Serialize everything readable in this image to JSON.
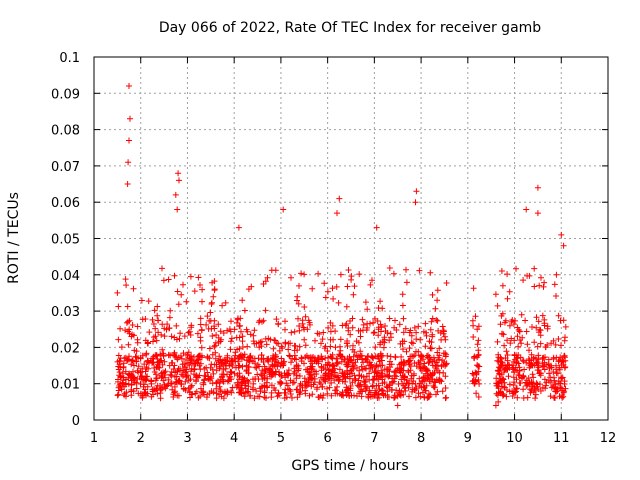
{
  "chart_data": {
    "type": "scatter",
    "title": "Day 066 of 2022, Rate Of TEC Index for receiver gamb",
    "xlabel": "GPS time / hours",
    "ylabel": "ROTI / TECUs",
    "xlim": [
      1,
      12
    ],
    "ylim": [
      0,
      0.1
    ],
    "xticks": [
      "1",
      "2",
      "3",
      "4",
      "5",
      "6",
      "7",
      "8",
      "9",
      "10",
      "11",
      "12"
    ],
    "yticks": [
      "0",
      "0.01",
      "0.02",
      "0.03",
      "0.04",
      "0.05",
      "0.06",
      "0.07",
      "0.08",
      "0.09",
      "0.1"
    ],
    "grid": true,
    "marker": "+",
    "series": [
      {
        "name": "ROTI",
        "color": "#ff0000",
        "coverage_hours": [
          [
            1.5,
            8.55
          ],
          [
            9.1,
            9.25
          ],
          [
            9.6,
            11.1
          ]
        ],
        "notable_points": [
          {
            "x": 1.75,
            "y": 0.092
          },
          {
            "x": 1.77,
            "y": 0.083
          },
          {
            "x": 1.75,
            "y": 0.077
          },
          {
            "x": 1.73,
            "y": 0.071
          },
          {
            "x": 1.72,
            "y": 0.065
          },
          {
            "x": 2.8,
            "y": 0.068
          },
          {
            "x": 2.82,
            "y": 0.066
          },
          {
            "x": 2.75,
            "y": 0.062
          },
          {
            "x": 2.78,
            "y": 0.058
          },
          {
            "x": 6.25,
            "y": 0.061
          },
          {
            "x": 6.2,
            "y": 0.057
          },
          {
            "x": 7.9,
            "y": 0.063
          },
          {
            "x": 7.88,
            "y": 0.06
          },
          {
            "x": 10.5,
            "y": 0.064
          },
          {
            "x": 10.5,
            "y": 0.057
          },
          {
            "x": 10.25,
            "y": 0.058
          },
          {
            "x": 5.05,
            "y": 0.058
          },
          {
            "x": 4.1,
            "y": 0.053
          },
          {
            "x": 7.05,
            "y": 0.053
          },
          {
            "x": 11.0,
            "y": 0.051
          },
          {
            "x": 11.05,
            "y": 0.048
          },
          {
            "x": 9.6,
            "y": 0.004
          },
          {
            "x": 9.65,
            "y": 0.005
          },
          {
            "x": 7.5,
            "y": 0.004
          },
          {
            "x": 1.5,
            "y": 0.035
          },
          {
            "x": 9.75,
            "y": 0.037
          },
          {
            "x": 9.2,
            "y": 0.025
          },
          {
            "x": 9.15,
            "y": 0.01
          }
        ],
        "bulk_range": [
          0.005,
          0.03
        ]
      }
    ]
  }
}
